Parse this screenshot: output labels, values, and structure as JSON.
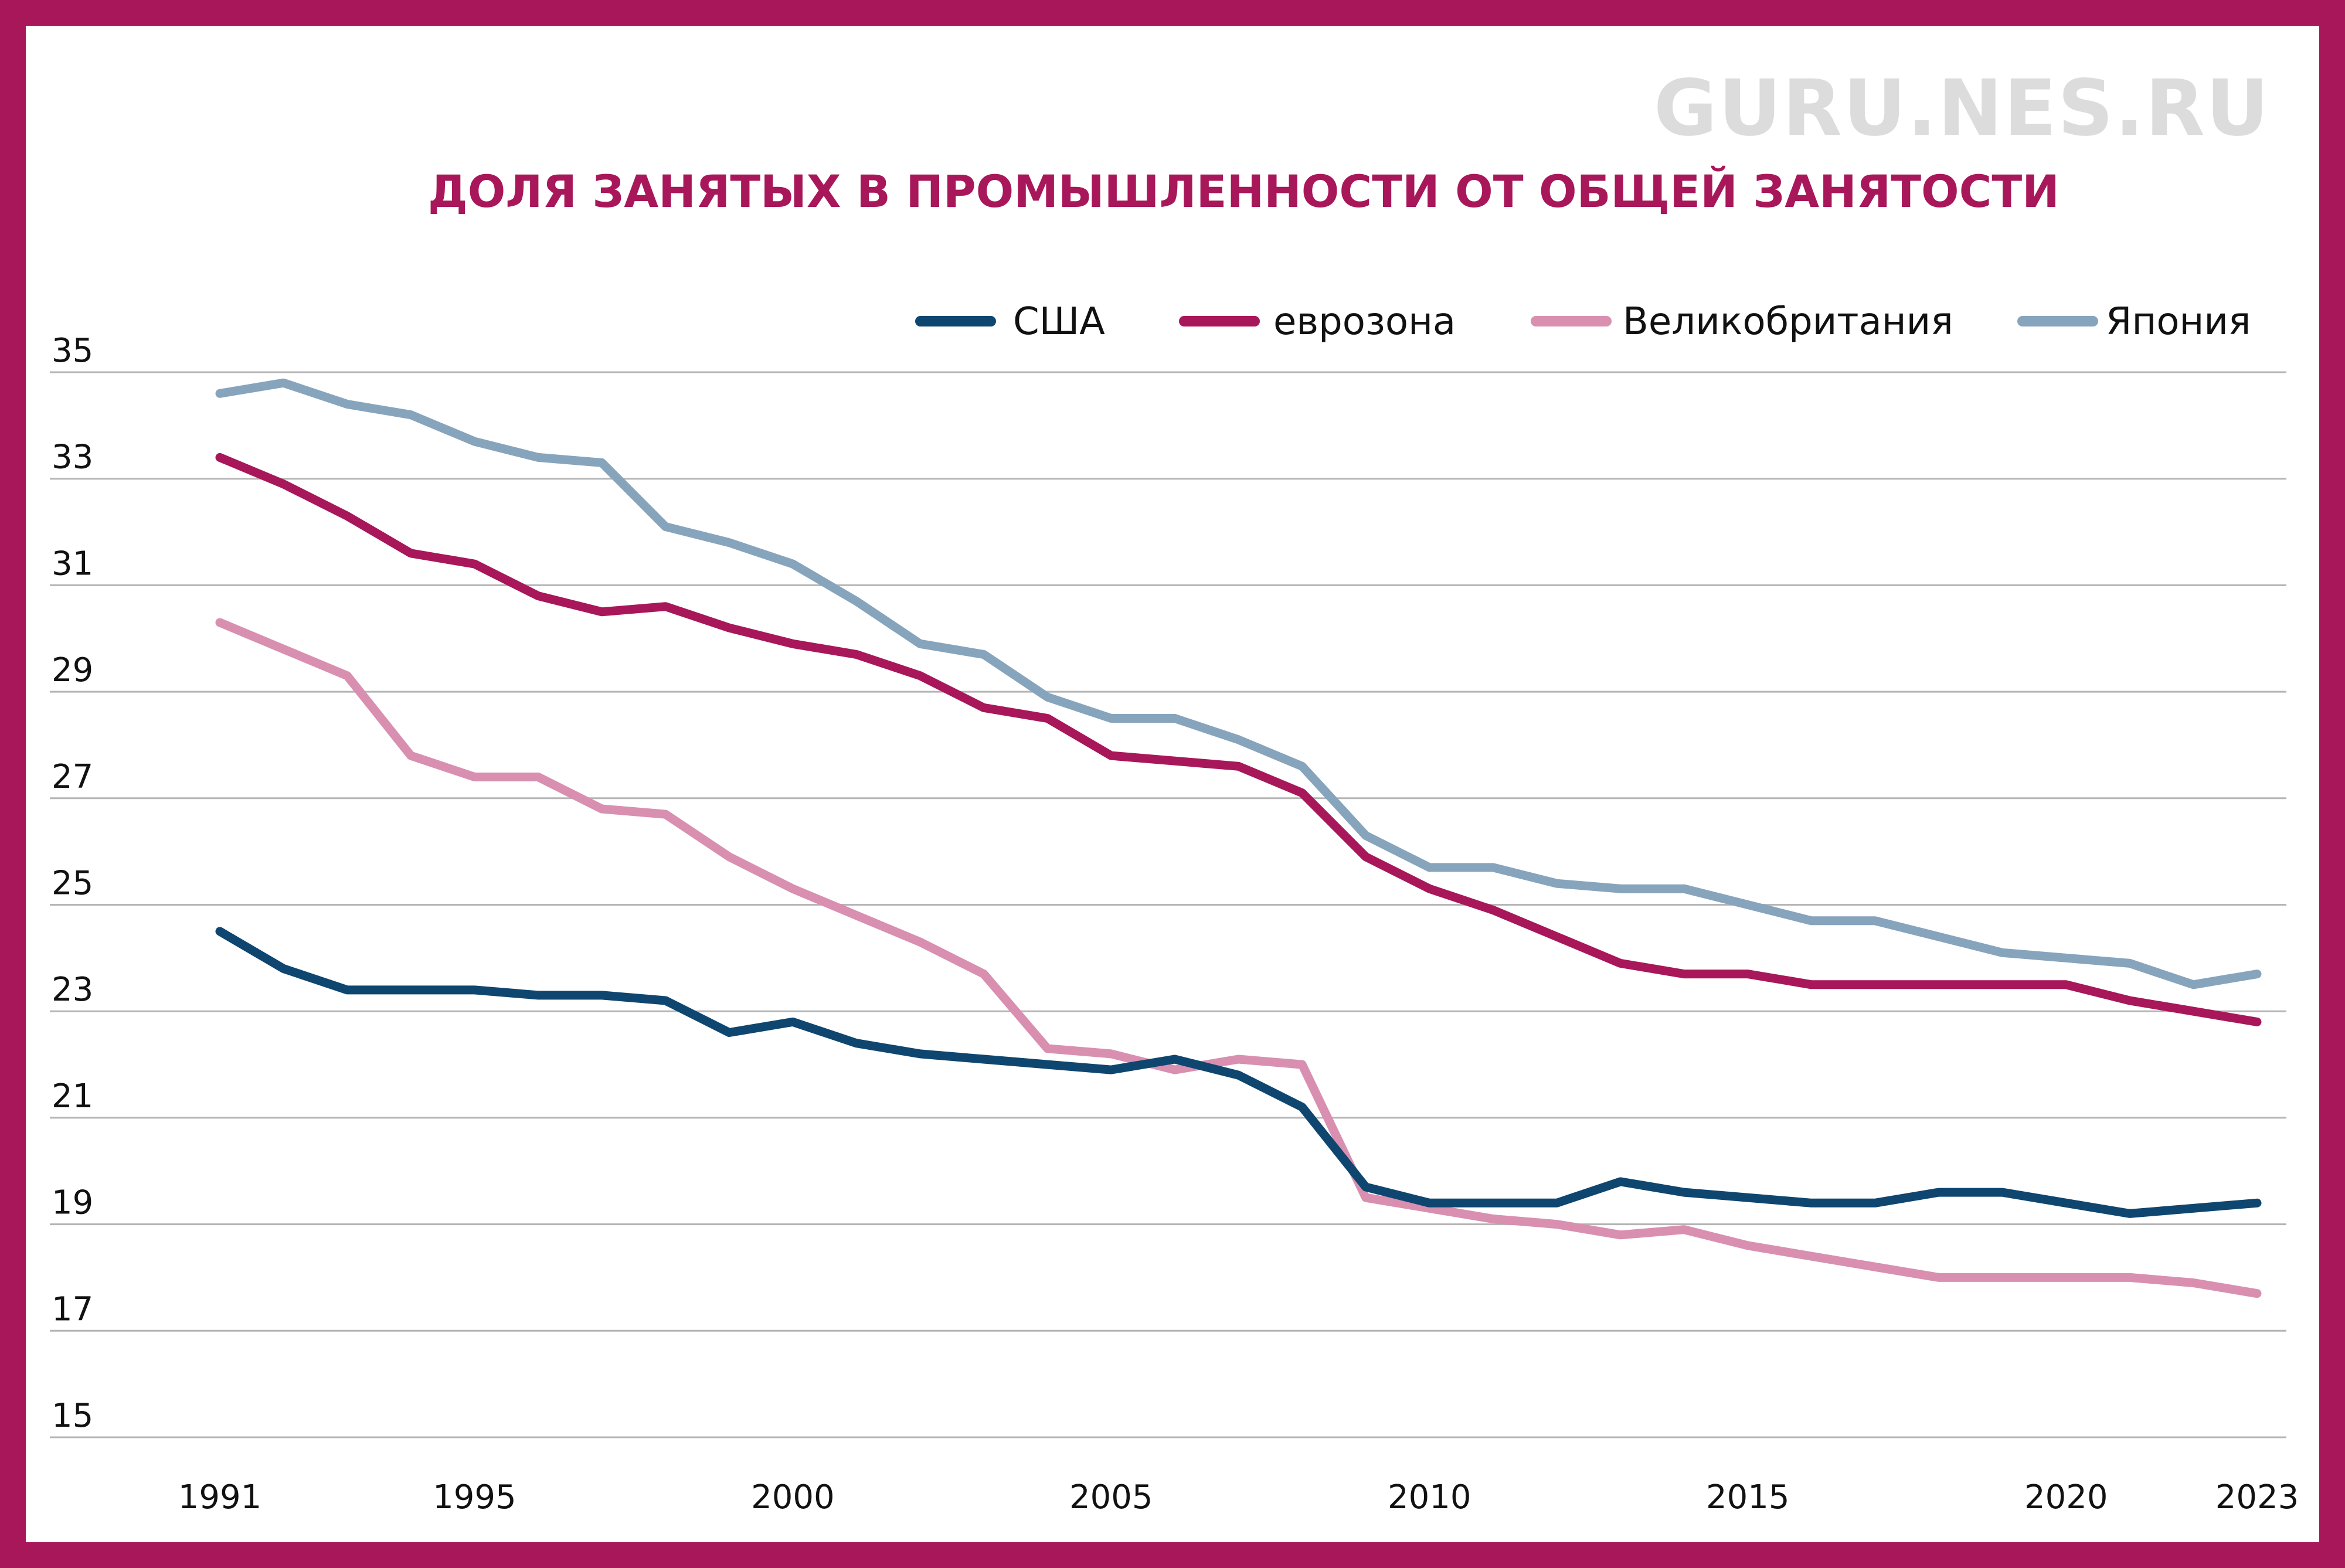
{
  "watermark": "GURU.NES.RU",
  "chart_data": {
    "type": "line",
    "title": "ДОЛЯ ЗАНЯТЫХ В ПРОМЫШЛЕННОСТИ ОТ ОБЩЕЙ ЗАНЯТОСТИ",
    "xlabel": "",
    "ylabel": "",
    "x": [
      1991,
      1992,
      1993,
      1994,
      1995,
      1996,
      1997,
      1998,
      1999,
      2000,
      2001,
      2002,
      2003,
      2004,
      2005,
      2006,
      2007,
      2008,
      2009,
      2010,
      2011,
      2012,
      2013,
      2014,
      2015,
      2016,
      2017,
      2018,
      2019,
      2020,
      2021,
      2022,
      2023
    ],
    "x_ticks": [
      1991,
      1995,
      2000,
      2005,
      2010,
      2015,
      2020,
      2023
    ],
    "xlim": [
      1991,
      2023
    ],
    "y_ticks": [
      15,
      17,
      19,
      21,
      23,
      25,
      27,
      29,
      31,
      33,
      35
    ],
    "ylim": [
      15,
      35
    ],
    "grid": "horizontal",
    "legend_position": "top-right",
    "series": [
      {
        "name": "США",
        "color": "#0e4670",
        "values": [
          24.5,
          23.8,
          23.4,
          23.4,
          23.4,
          23.3,
          23.3,
          23.2,
          22.6,
          22.8,
          22.4,
          22.2,
          22.1,
          22.0,
          21.9,
          22.1,
          21.8,
          21.2,
          19.7,
          19.4,
          19.4,
          19.4,
          19.8,
          19.6,
          19.5,
          19.4,
          19.4,
          19.6,
          19.6,
          19.4,
          19.2,
          19.3,
          19.4
        ]
      },
      {
        "name": "еврозона",
        "color": "#a8175a",
        "values": [
          33.4,
          32.9,
          32.3,
          31.6,
          31.4,
          30.8,
          30.5,
          30.6,
          30.2,
          29.9,
          29.7,
          29.3,
          28.7,
          28.5,
          27.8,
          27.7,
          27.6,
          27.1,
          25.9,
          25.3,
          24.9,
          24.4,
          23.9,
          23.7,
          23.7,
          23.5,
          23.5,
          23.5,
          23.5,
          23.5,
          23.2,
          23.0,
          22.8
        ]
      },
      {
        "name": "Великобритания",
        "color": "#d98fb0",
        "values": [
          30.3,
          29.8,
          29.3,
          27.8,
          27.4,
          27.4,
          26.8,
          26.7,
          25.9,
          25.3,
          24.8,
          24.3,
          23.7,
          22.3,
          22.2,
          21.9,
          22.1,
          22.0,
          19.5,
          19.3,
          19.1,
          19.0,
          18.8,
          18.9,
          18.6,
          18.4,
          18.2,
          18.0,
          18.0,
          18.0,
          18.0,
          17.9,
          17.7
        ]
      },
      {
        "name": "Япония",
        "color": "#87a4bd",
        "values": [
          34.6,
          34.8,
          34.4,
          34.2,
          33.7,
          33.4,
          33.3,
          32.1,
          31.8,
          31.4,
          30.7,
          29.9,
          29.7,
          28.9,
          28.5,
          28.5,
          28.1,
          27.6,
          26.3,
          25.7,
          25.7,
          25.4,
          25.3,
          25.3,
          25.0,
          24.7,
          24.7,
          24.4,
          24.1,
          24.0,
          23.9,
          23.5,
          23.7
        ]
      }
    ]
  }
}
